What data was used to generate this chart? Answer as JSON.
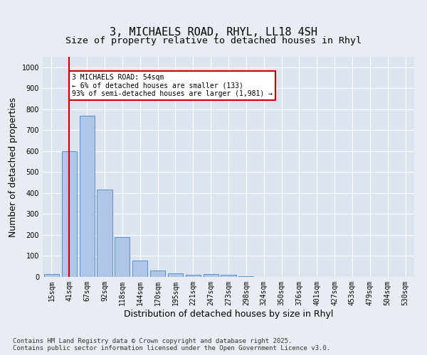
{
  "title1": "3, MICHAELS ROAD, RHYL, LL18 4SH",
  "title2": "Size of property relative to detached houses in Rhyl",
  "xlabel": "Distribution of detached houses by size in Rhyl",
  "ylabel": "Number of detached properties",
  "categories": [
    "15sqm",
    "41sqm",
    "67sqm",
    "92sqm",
    "118sqm",
    "144sqm",
    "170sqm",
    "195sqm",
    "221sqm",
    "247sqm",
    "273sqm",
    "298sqm",
    "324sqm",
    "350sqm",
    "376sqm",
    "401sqm",
    "427sqm",
    "453sqm",
    "479sqm",
    "504sqm",
    "530sqm"
  ],
  "values": [
    12,
    600,
    770,
    415,
    190,
    77,
    32,
    16,
    10,
    15,
    10,
    5,
    0,
    0,
    0,
    0,
    0,
    0,
    0,
    0,
    0
  ],
  "bar_color": "#aec6e8",
  "bar_edge_color": "#5b8fc9",
  "vline_x_index": 1,
  "vline_color": "#cc0000",
  "annotation_text": "3 MICHAELS ROAD: 54sqm\n← 6% of detached houses are smaller (133)\n93% of semi-detached houses are larger (1,981) →",
  "annotation_box_color": "#ffffff",
  "annotation_box_edge_color": "#cc0000",
  "ylim": [
    0,
    1050
  ],
  "yticks": [
    0,
    100,
    200,
    300,
    400,
    500,
    600,
    700,
    800,
    900,
    1000
  ],
  "bg_color": "#e8edf4",
  "plot_bg_color": "#dce4f0",
  "grid_color": "#ffffff",
  "footer_text": "Contains HM Land Registry data © Crown copyright and database right 2025.\nContains public sector information licensed under the Open Government Licence v3.0.",
  "title_fontsize": 11,
  "subtitle_fontsize": 9.5,
  "tick_fontsize": 7,
  "label_fontsize": 9
}
